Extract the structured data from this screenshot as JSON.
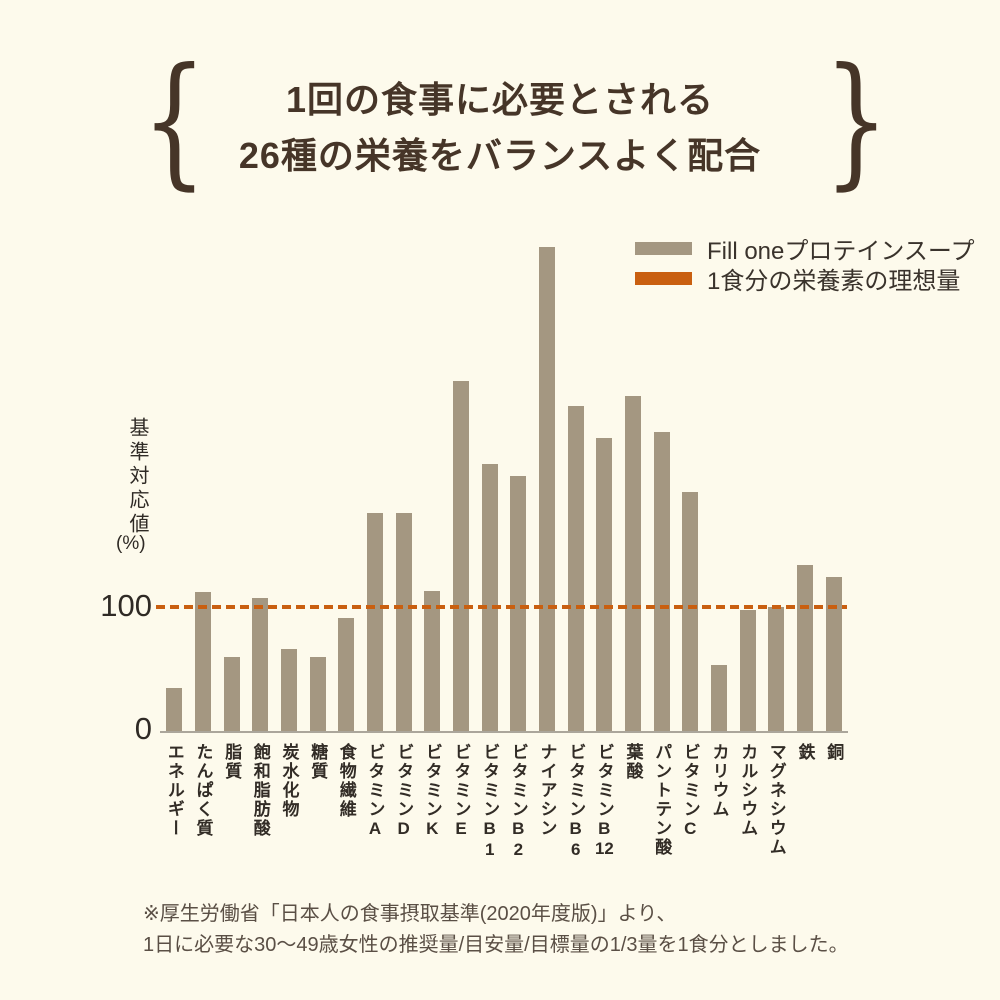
{
  "header": {
    "title_line1": "1回の食事に必要とされる",
    "title_line2": "26種の栄養をバランスよく配合",
    "brace_left": "{",
    "brace_right": "}"
  },
  "legend": {
    "items": [
      {
        "label": "Fill oneプロテインスープ",
        "swatch_color": "#a49781",
        "type": "bar-series"
      },
      {
        "label": "1食分の栄養素の理想量",
        "swatch_color": "#c95f10",
        "type": "reference-line"
      }
    ]
  },
  "y_axis": {
    "label_vertical": "基準対応値",
    "label_unit": "(%)",
    "tick_100": "100",
    "tick_0": "0"
  },
  "chart_data": {
    "type": "bar",
    "series_name": "Fill oneプロテインスープ",
    "categories": [
      "エネルギー",
      "たんぱく質",
      "脂質",
      "飽和脂肪酸",
      "炭水化物",
      "糖質",
      "食物繊維",
      "ビタミンA",
      "ビタミンD",
      "ビタミンK",
      "ビタミンE",
      "ビタミンB1",
      "ビタミンB2",
      "ナイアシン",
      "ビタミンB6",
      "ビタミンB12",
      "葉酸",
      "パントテン酸",
      "ビタミンC",
      "カリウム",
      "カルシウム",
      "マグネシウム",
      "鉄",
      "銅"
    ],
    "values": [
      35,
      112,
      60,
      107,
      66,
      60,
      91,
      176,
      176,
      113,
      282,
      215,
      206,
      390,
      262,
      236,
      270,
      241,
      193,
      53,
      98,
      100,
      134,
      124
    ],
    "ylabel": "基準対応値(%)",
    "ylim": [
      0,
      400
    ],
    "yticks_labeled": [
      0,
      100
    ],
    "grid": false,
    "legend_position": "top-right",
    "reference_line": {
      "value": 100,
      "label": "1食分の栄養素の理想量",
      "style": "dashed",
      "color": "#c95f10"
    },
    "bar_color": "#a49781"
  },
  "footnote": {
    "line1": "※厚生労働省「日本人の食事摂取基準(2020年度版)」より、",
    "line2": "1日に必要な30〜49歳女性の推奨量/目安量/目標量の1/3量を1食分としました。"
  },
  "colors": {
    "background": "#fdfaec",
    "bar": "#a49781",
    "accent_orange": "#c95f10",
    "title_text": "#463528",
    "body_text": "#3a332c",
    "footnote_text": "#5a4f45",
    "axis_line": "#aba69b"
  }
}
